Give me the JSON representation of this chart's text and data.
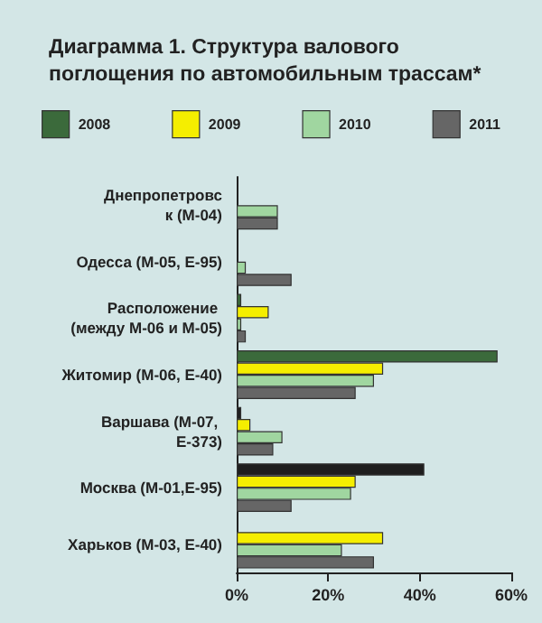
{
  "chart_data": {
    "type": "bar",
    "orientation": "horizontal",
    "title": "Диаграмма 1. Структура валового поглощения по автомобильным трассам*",
    "categories": [
      "Днепропетровск (М-04)",
      "Одесса (М-05, Е-95)",
      "Расположение (между М-06 и М-05)",
      "Житомир (М-06, Е-40)",
      "Варшава (М-07, Е-373)",
      "Москва (М-01,Е-95)",
      "Харьков (М-03, Е-40)"
    ],
    "series": [
      {
        "name": "2008",
        "color": "#3b6a3b",
        "colors": [
          "#3b6a3b",
          "#3b6a3b",
          "#3b6a3b",
          "#3b6a3b",
          "#1e1e1e",
          "#1e1e1e",
          "#3b6a3b"
        ],
        "values": [
          null,
          null,
          1,
          57,
          1,
          41,
          null
        ]
      },
      {
        "name": "2009",
        "color": "#f5ee00",
        "values": [
          null,
          null,
          7,
          32,
          3,
          26,
          32
        ]
      },
      {
        "name": "2010",
        "color": "#a0d6a0",
        "values": [
          9,
          2,
          1,
          30,
          10,
          25,
          23
        ]
      },
      {
        "name": "2011",
        "color": "#666666",
        "values": [
          9,
          12,
          2,
          26,
          8,
          12,
          30
        ]
      }
    ],
    "xlim": [
      0,
      60
    ],
    "xticks": [
      {
        "value": 0,
        "label": "0%"
      },
      {
        "value": 20,
        "label": "20%"
      },
      {
        "value": 40,
        "label": "40%"
      },
      {
        "value": 60,
        "label": "60%"
      }
    ],
    "grid": false,
    "legend": "top"
  }
}
